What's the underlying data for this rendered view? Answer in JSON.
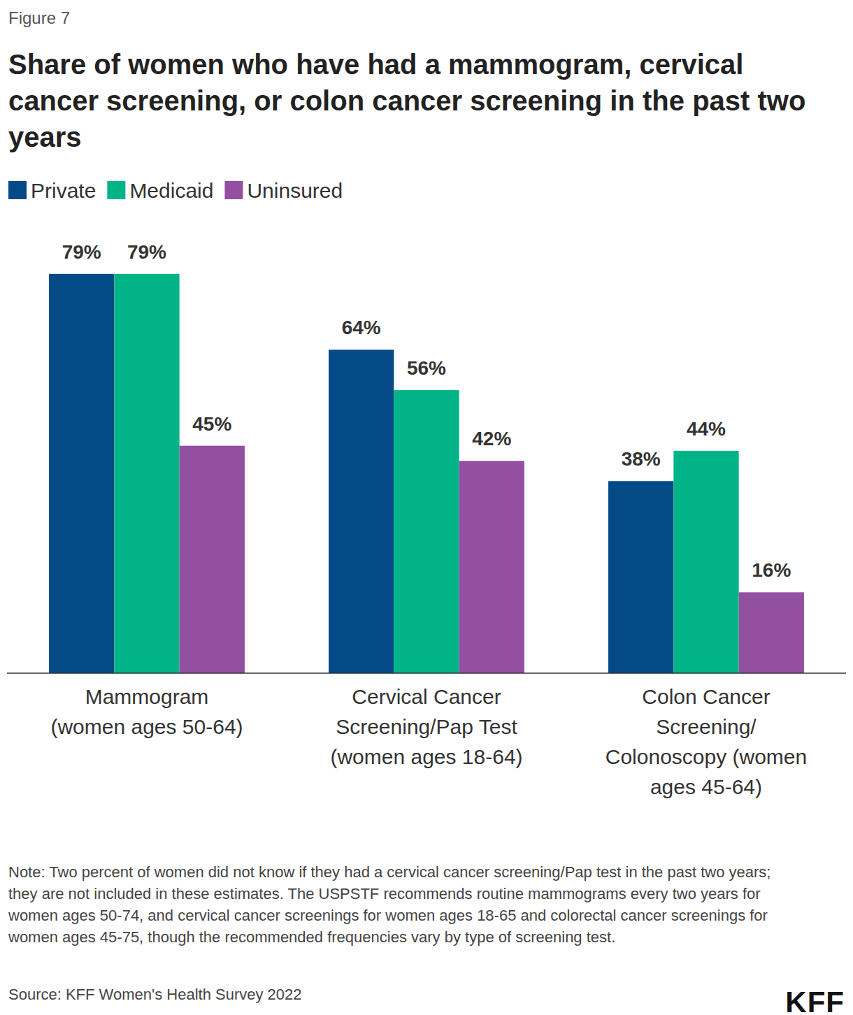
{
  "chart_data": {
    "type": "bar",
    "figure_label": "Figure 7",
    "title": "Share of women who have had a mammogram, cervical cancer screening, or colon cancer screening in the past two years",
    "categories": [
      "Mammogram\n(women ages 50-64)",
      "Cervical Cancer\nScreening/Pap Test\n(women ages 18-64)",
      "Colon Cancer\nScreening/\nColonoscopy (women\nages 45-64)"
    ],
    "series": [
      {
        "name": "Private",
        "color": "#034a87",
        "values": [
          79,
          64,
          38
        ],
        "value_labels": [
          "79%",
          "64%",
          "38%"
        ]
      },
      {
        "name": "Medicaid",
        "color": "#00b487",
        "values": [
          79,
          56,
          44
        ],
        "value_labels": [
          "79%",
          "56%",
          "44%"
        ]
      },
      {
        "name": "Uninsured",
        "color": "#9350a1",
        "values": [
          45,
          42,
          16
        ],
        "value_labels": [
          "45%",
          "42%",
          "16%"
        ]
      }
    ],
    "ylim": [
      0,
      100
    ],
    "tick_labels": "x",
    "grid": false,
    "legend": "top-left",
    "data_labels": true,
    "note": "Note: Two percent of women did not know if they had a cervical cancer screening/Pap test in the past two years; they are not included in these estimates. The USPSTF recommends routine mammograms every two years for women ages 50-74, and cervical cancer screenings for women ages 18-65 and colorectal cancer screenings for women ages 45-75, though the recommended frequencies vary by type of screening test.",
    "source": "Source: KFF Women's Health Survey 2022",
    "logo": "KFF"
  }
}
